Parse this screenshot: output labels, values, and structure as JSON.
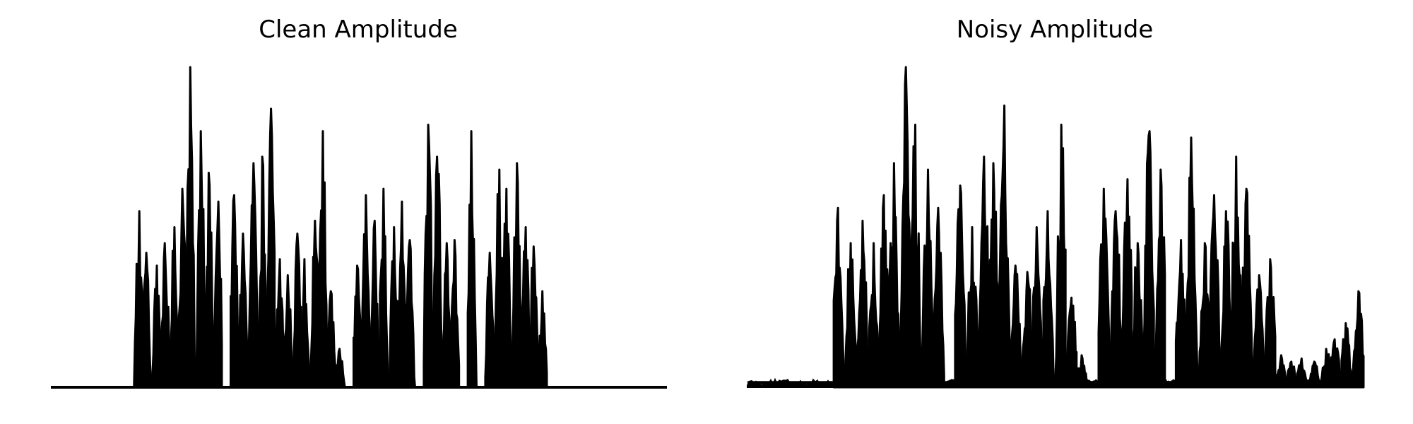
{
  "chart_data": [
    {
      "type": "area",
      "title": "Clean Amplitude",
      "xlabel": "",
      "ylabel": "",
      "axes_visible": false,
      "grid": false,
      "color": "#000000",
      "ylim": [
        0,
        1.0
      ],
      "silence_before": 0.135,
      "silence_after": 0.195,
      "floor_level": 0.0,
      "envelope_peaks": [
        0.55,
        0.42,
        0.38,
        0.45,
        0.5,
        0.62,
        1.0,
        0.8,
        0.67,
        0.58,
        0.0,
        0.6,
        0.48,
        0.7,
        0.72,
        0.87,
        0.4,
        0.35,
        0.48,
        0.4,
        0.52,
        0.8,
        0.3,
        0.12,
        0.0,
        0.38,
        0.6,
        0.52,
        0.62,
        0.5,
        0.58,
        0.46,
        0.0,
        0.82,
        0.72,
        0.45,
        0.46,
        0.0,
        0.8,
        0.0,
        0.42,
        0.68,
        0.62,
        0.7,
        0.5,
        0.44,
        0.3
      ]
    },
    {
      "type": "area",
      "title": "Noisy Amplitude",
      "xlabel": "",
      "ylabel": "",
      "axes_visible": false,
      "grid": false,
      "color": "#000000",
      "ylim": [
        0,
        1.0
      ],
      "silence_before": 0.14,
      "silence_after": 0.0,
      "floor_level": 0.015,
      "envelope_peaks": [
        0.56,
        0.45,
        0.52,
        0.45,
        0.6,
        0.7,
        1.0,
        0.82,
        0.68,
        0.56,
        0.0,
        0.63,
        0.5,
        0.72,
        0.7,
        0.88,
        0.38,
        0.36,
        0.5,
        0.55,
        0.82,
        0.28,
        0.1,
        0.0,
        0.62,
        0.55,
        0.65,
        0.45,
        0.8,
        0.68,
        0.0,
        0.46,
        0.78,
        0.45,
        0.6,
        0.55,
        0.72,
        0.62,
        0.35,
        0.4,
        0.1,
        0.08,
        0.09,
        0.08,
        0.12,
        0.15,
        0.2,
        0.3
      ]
    }
  ]
}
